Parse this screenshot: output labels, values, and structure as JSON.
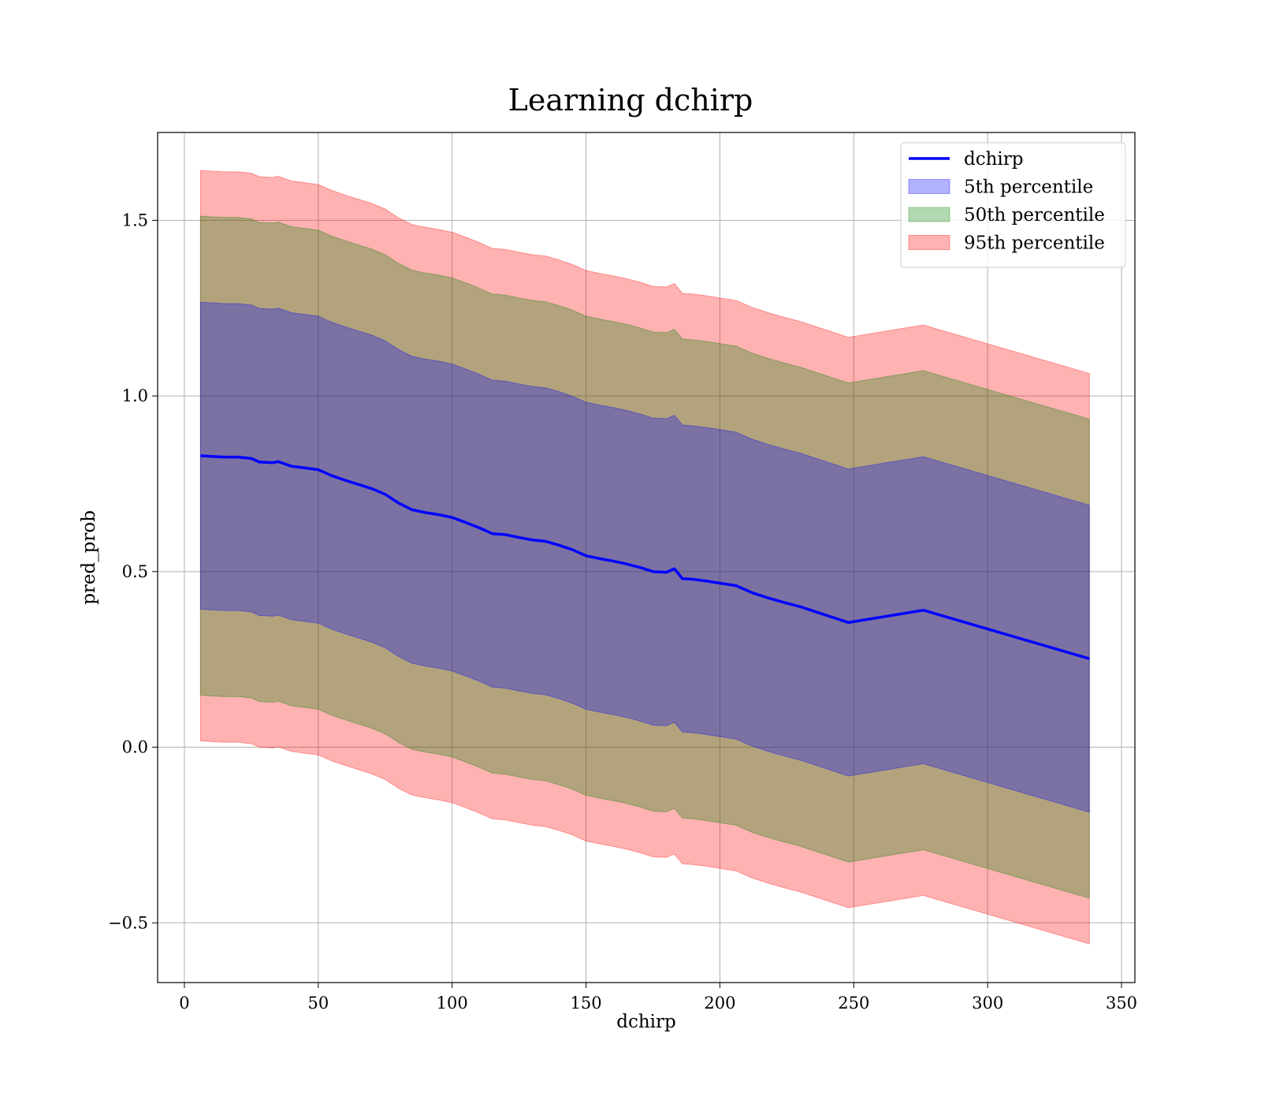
{
  "chart_data": {
    "type": "line",
    "title": "Learning dchirp",
    "xlabel": "dchirp",
    "ylabel": "pred_prob",
    "xlim": [
      -10,
      355
    ],
    "ylim": [
      -0.67,
      1.75
    ],
    "xticks": [
      0,
      50,
      100,
      150,
      200,
      250,
      300,
      350
    ],
    "yticks": [
      -0.5,
      0.0,
      0.5,
      1.0,
      1.5
    ],
    "xtick_labels": [
      "0",
      "50",
      "100",
      "150",
      "200",
      "250",
      "300",
      "350"
    ],
    "ytick_labels": [
      "−0.5",
      "0.0",
      "0.5",
      "1.0",
      "1.5"
    ],
    "grid": true,
    "legend_position": "top-right",
    "x": [
      6,
      10,
      15,
      20,
      25,
      28,
      33,
      35,
      40,
      45,
      50,
      55,
      60,
      65,
      70,
      75,
      80,
      85,
      90,
      95,
      100,
      105,
      110,
      115,
      120,
      125,
      130,
      135,
      140,
      145,
      150,
      155,
      160,
      165,
      170,
      175,
      180,
      183,
      186,
      190,
      195,
      200,
      206,
      212,
      218,
      224,
      230,
      236,
      242,
      248,
      276,
      338
    ],
    "series": [
      {
        "name": "dchirp",
        "kind": "line",
        "color": "#0000ff",
        "values": [
          0.83,
          0.828,
          0.826,
          0.826,
          0.822,
          0.812,
          0.81,
          0.813,
          0.8,
          0.795,
          0.79,
          0.773,
          0.76,
          0.748,
          0.736,
          0.72,
          0.695,
          0.676,
          0.668,
          0.662,
          0.654,
          0.64,
          0.625,
          0.608,
          0.605,
          0.597,
          0.59,
          0.586,
          0.575,
          0.562,
          0.545,
          0.537,
          0.53,
          0.522,
          0.512,
          0.5,
          0.498,
          0.508,
          0.48,
          0.478,
          0.473,
          0.467,
          0.46,
          0.44,
          0.425,
          0.412,
          0.4,
          0.385,
          0.37,
          0.355,
          0.39,
          0.252
        ]
      },
      {
        "name": "5th percentile",
        "kind": "band",
        "color": "#0000ff",
        "opacity": 0.3,
        "half_width": 0.437
      },
      {
        "name": "50th percentile",
        "kind": "band",
        "color": "#008000",
        "opacity": 0.3,
        "half_width": 0.682
      },
      {
        "name": "95th percentile",
        "kind": "band",
        "color": "#ff0000",
        "opacity": 0.3,
        "half_width": 0.812
      }
    ]
  }
}
